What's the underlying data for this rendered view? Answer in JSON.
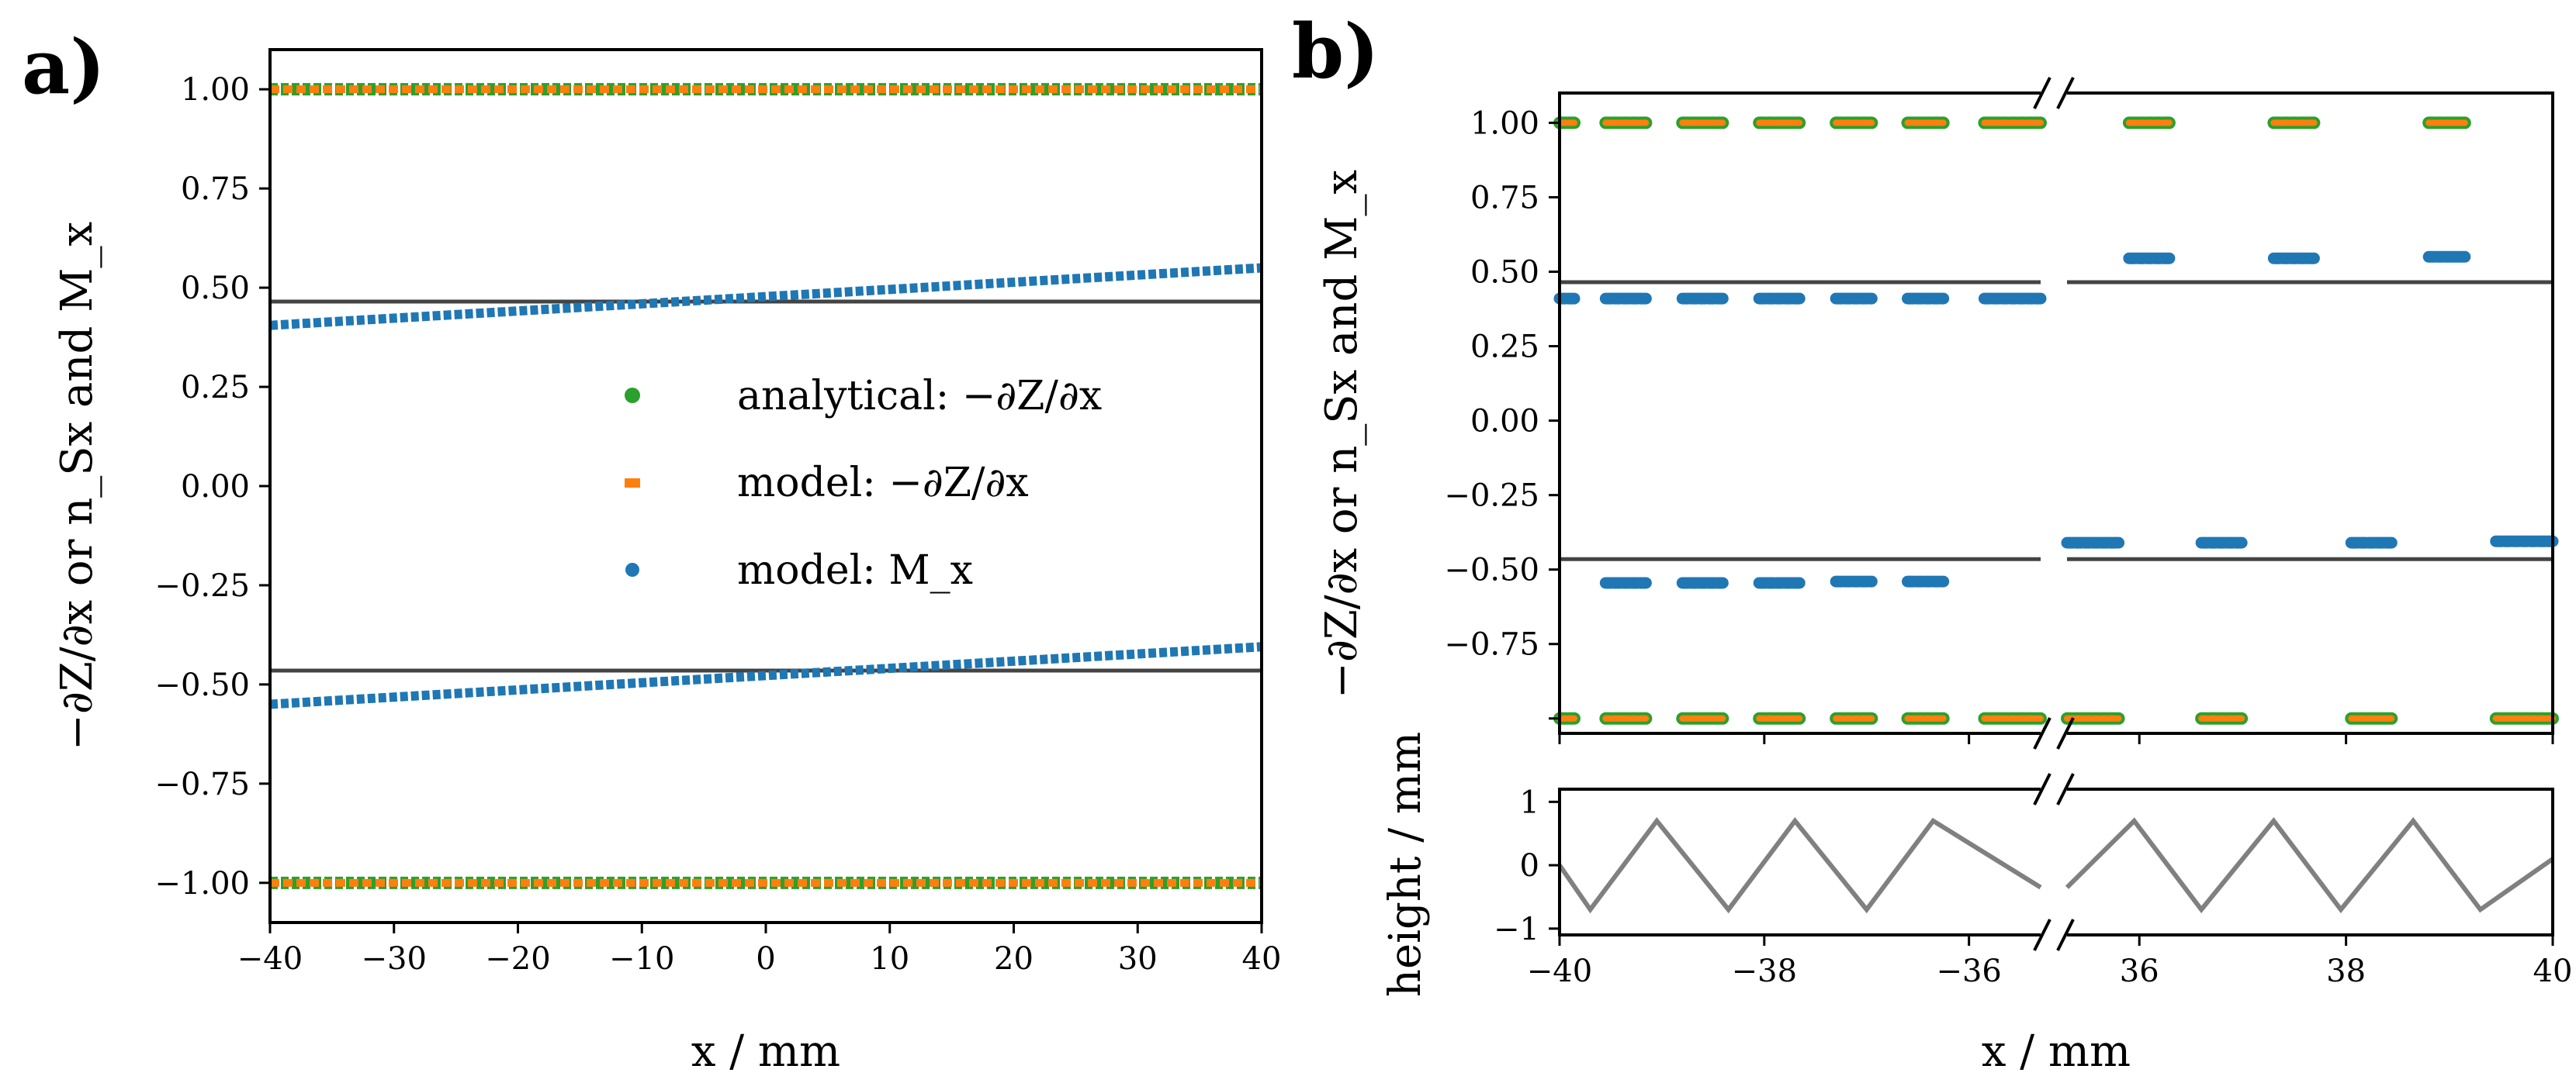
{
  "panels": {
    "a": {
      "label": "a)",
      "xlabel": "x / mm",
      "ylabel": "−∂Z/∂x or n_Sx and M_x",
      "xticks": [
        "−40",
        "−30",
        "−20",
        "−10",
        "0",
        "10",
        "20",
        "30",
        "40"
      ],
      "yticks": [
        "1.00",
        "0.75",
        "0.50",
        "0.25",
        "0.00",
        "−0.25",
        "−0.50",
        "−0.75",
        "−1.00"
      ],
      "legend": [
        {
          "label": "analytical: −∂Z/∂x",
          "color": "#2ca02c"
        },
        {
          "label": "model: −∂Z/∂x",
          "color": "#ff7f0e"
        },
        {
          "label": "model:  M_x",
          "color": "#1f77b4"
        }
      ]
    },
    "b": {
      "label": "b)",
      "xlabel": "x / mm",
      "ylabel_top": "−∂Z/∂x or n_Sx and M_x",
      "ylabel_bottom": "height / mm",
      "xticks_left": [
        "−40",
        "−38",
        "−36"
      ],
      "xticks_right": [
        "36",
        "38",
        "40"
      ],
      "yticks_top": [
        "1.00",
        "0.75",
        "0.50",
        "0.25",
        "0.00",
        "−0.25",
        "−0.50",
        "−0.75"
      ],
      "yticks_bottom": [
        "1",
        "0",
        "−1"
      ]
    }
  },
  "chart_data": [
    {
      "type": "scatter",
      "panel": "a",
      "xlim": [
        -40,
        40
      ],
      "ylim": [
        -1.1,
        1.1
      ],
      "series": [
        {
          "name": "analytical: −∂Z/∂x",
          "color": "#2ca02c",
          "segments": [
            {
              "x": [
                -40,
                40
              ],
              "y": [
                1.0,
                1.0
              ]
            },
            {
              "x": [
                -40,
                40
              ],
              "y": [
                -1.0,
                -1.0
              ]
            }
          ]
        },
        {
          "name": "model: −∂Z/∂x",
          "color": "#ff7f0e",
          "segments": [
            {
              "x": [
                -40,
                40
              ],
              "y": [
                1.0,
                1.0
              ]
            },
            {
              "x": [
                -40,
                40
              ],
              "y": [
                -1.0,
                -1.0
              ]
            }
          ]
        },
        {
          "name": "model:  M_x",
          "color": "#1f77b4",
          "segments": [
            {
              "x": [
                -40,
                40
              ],
              "y": [
                0.405,
                0.55
              ]
            },
            {
              "x": [
                -40,
                40
              ],
              "y": [
                -0.55,
                -0.405
              ]
            }
          ]
        }
      ],
      "reference_lines": {
        "color": "#444444",
        "y": [
          0.465,
          -0.465
        ]
      }
    },
    {
      "type": "scatter",
      "panel": "b-top",
      "xlim_left": [
        -40,
        -35.3
      ],
      "xlim_right": [
        35.3,
        40
      ],
      "ylim": [
        -1.05,
        1.1
      ],
      "reference_lines": {
        "color": "#444444",
        "y": [
          0.465,
          -0.465
        ]
      },
      "plateaus": [
        {
          "x0": -40.0,
          "x1": -39.85,
          "top": 1.0,
          "mx": 0.41,
          "bottom": -1.0,
          "mxb": null
        },
        {
          "x0": -39.55,
          "x1": -39.15,
          "top": 1.0,
          "mx": 0.41,
          "bottom": null,
          "mxb": null
        },
        {
          "x0": -38.8,
          "x1": -38.4,
          "top": 1.0,
          "mx": 0.41,
          "bottom": null,
          "mxb": null
        },
        {
          "x0": -38.05,
          "x1": -37.65,
          "top": 1.0,
          "mx": 0.41,
          "bottom": null,
          "mxb": null
        },
        {
          "x0": -37.3,
          "x1": -36.95,
          "top": 1.0,
          "mx": 0.41,
          "bottom": null,
          "mxb": null
        },
        {
          "x0": -36.6,
          "x1": -36.25,
          "top": 1.0,
          "mx": 0.41,
          "bottom": null,
          "mxb": null
        },
        {
          "x0": -35.85,
          "x1": -35.3,
          "top": 1.0,
          "mx": 0.41,
          "bottom": null,
          "mxb": null
        },
        {
          "x0": -39.55,
          "x1": -39.15,
          "top": null,
          "mx": null,
          "bottom": -1.0,
          "mxb": -0.545
        },
        {
          "x0": -38.8,
          "x1": -38.4,
          "top": null,
          "mx": null,
          "bottom": -1.0,
          "mxb": -0.545
        },
        {
          "x0": -38.05,
          "x1": -37.65,
          "top": null,
          "mx": null,
          "bottom": -1.0,
          "mxb": -0.545
        },
        {
          "x0": -37.3,
          "x1": -36.95,
          "top": null,
          "mx": null,
          "bottom": -1.0,
          "mxb": -0.54
        },
        {
          "x0": -36.6,
          "x1": -36.25,
          "top": null,
          "mx": null,
          "bottom": -1.0,
          "mxb": -0.54
        },
        {
          "x0": -35.85,
          "x1": -35.3,
          "top": null,
          "mx": null,
          "bottom": -1.0,
          "mxb": null
        },
        {
          "x0": 35.3,
          "x1": 35.8,
          "top": null,
          "mx": null,
          "bottom": -1.0,
          "mxb": -0.41
        },
        {
          "x0": 35.9,
          "x1": 36.3,
          "top": 1.0,
          "mx": 0.545,
          "bottom": null,
          "mxb": null
        },
        {
          "x0": 36.6,
          "x1": 37.0,
          "top": null,
          "mx": null,
          "bottom": -1.0,
          "mxb": -0.41
        },
        {
          "x0": 37.3,
          "x1": 37.7,
          "top": 1.0,
          "mx": 0.545,
          "bottom": null,
          "mxb": null
        },
        {
          "x0": 38.05,
          "x1": 38.45,
          "top": null,
          "mx": null,
          "bottom": -1.0,
          "mxb": -0.41
        },
        {
          "x0": 38.8,
          "x1": 39.15,
          "top": 1.0,
          "mx": 0.55,
          "bottom": null,
          "mxb": null
        },
        {
          "x0": 39.45,
          "x1": 40.0,
          "top": null,
          "mx": null,
          "bottom": -1.0,
          "mxb": -0.405
        }
      ]
    },
    {
      "type": "line",
      "panel": "b-bottom",
      "color": "#808080",
      "ylim": [
        -1.1,
        1.2
      ],
      "segments": [
        {
          "x": [
            -40,
            -39.7,
            -39.05,
            -38.35,
            -37.7,
            -37.0,
            -36.35,
            -35.3
          ],
          "y": [
            0.0,
            -0.7,
            0.7,
            -0.7,
            0.7,
            -0.7,
            0.7,
            -0.35
          ]
        },
        {
          "x": [
            35.3,
            35.95,
            36.6,
            37.3,
            37.95,
            38.65,
            39.3,
            40.0
          ],
          "y": [
            -0.35,
            0.7,
            -0.7,
            0.7,
            -0.7,
            0.7,
            -0.7,
            0.1
          ]
        }
      ]
    }
  ]
}
